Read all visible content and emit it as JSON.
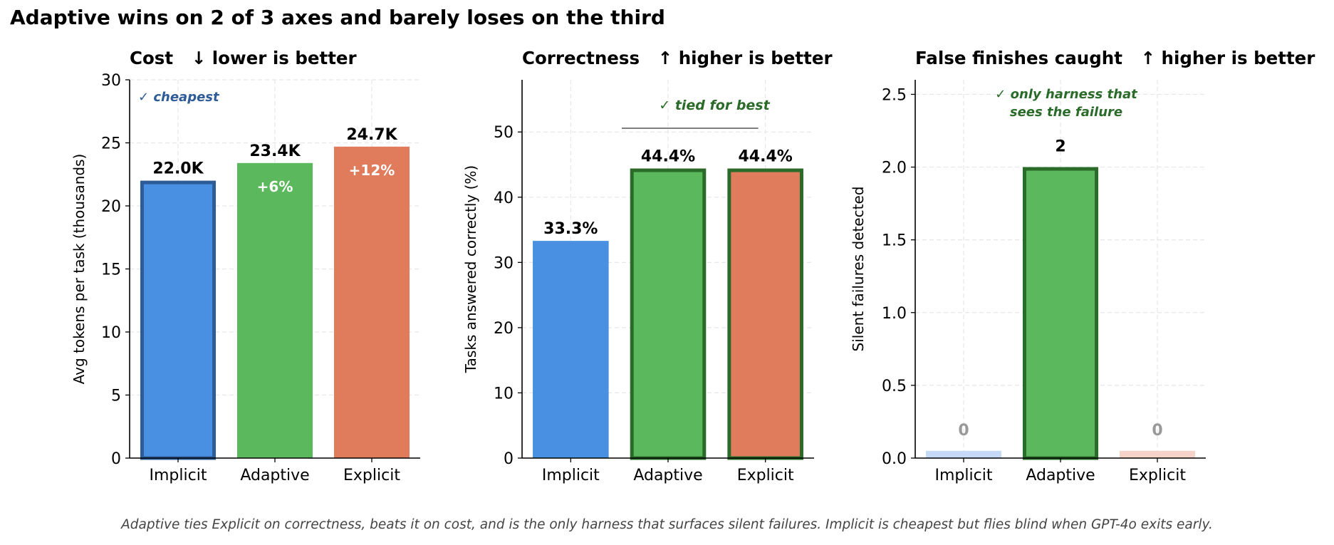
{
  "figure": {
    "title": "Adaptive wins on 2 of 3 axes and barely loses on the third",
    "footnote": "Adaptive ties Explicit on correctness, beats it on cost, and is the only harness that surfaces silent failures. Implicit is cheapest but flies blind when GPT-4o exits early."
  },
  "colors": {
    "implicit": "#4a90e2",
    "adaptive": "#5cb85c",
    "explicit": "#e07b5c",
    "implicit_faded": "#c5daf6",
    "explicit_faded": "#f6d3c8",
    "highlight_blue": "#2e5c99",
    "highlight_green": "#2a6b2a",
    "grid": "#e6e6e6",
    "zero_label": "#999999"
  },
  "chart_data": [
    {
      "type": "bar",
      "title": "Cost   ↓ lower is better",
      "ylabel": "Avg tokens per task (thousands)",
      "ylim": [
        0,
        30
      ],
      "yticks": [
        "0",
        "5",
        "10",
        "15",
        "20",
        "25",
        "30"
      ],
      "categories": [
        "Implicit",
        "Adaptive",
        "Explicit"
      ],
      "values": [
        22.0,
        23.4,
        24.7
      ],
      "value_labels": [
        "22.0K",
        "23.4K",
        "24.7K"
      ],
      "inner_labels": [
        "",
        "+6%",
        "+12%"
      ],
      "annotation": "✓ cheapest",
      "highlight": [
        true,
        false,
        false
      ],
      "grid": true
    },
    {
      "type": "bar",
      "title": "Correctness   ↑ higher is better",
      "ylabel": "Tasks answered correctly (%)",
      "ylim": [
        0,
        58
      ],
      "yticks": [
        "0",
        "10",
        "20",
        "30",
        "40",
        "50"
      ],
      "categories": [
        "Implicit",
        "Adaptive",
        "Explicit"
      ],
      "values": [
        33.3,
        44.4,
        44.4
      ],
      "value_labels": [
        "33.3%",
        "44.4%",
        "44.4%"
      ],
      "annotation": "✓ tied for best",
      "highlight": [
        false,
        true,
        true
      ],
      "grid": true
    },
    {
      "type": "bar",
      "title": "False finishes caught   ↑ higher is better",
      "ylabel": "Silent failures detected",
      "ylim": [
        0,
        2.6
      ],
      "yticks": [
        "0.0",
        "0.5",
        "1.0",
        "1.5",
        "2.0",
        "2.5"
      ],
      "categories": [
        "Implicit",
        "Adaptive",
        "Explicit"
      ],
      "values": [
        0,
        2,
        0
      ],
      "value_labels": [
        "0",
        "2",
        "0"
      ],
      "annotation_lines": [
        "✓ only harness that",
        "sees the failure"
      ],
      "highlight": [
        false,
        true,
        false
      ],
      "grid": true
    }
  ]
}
